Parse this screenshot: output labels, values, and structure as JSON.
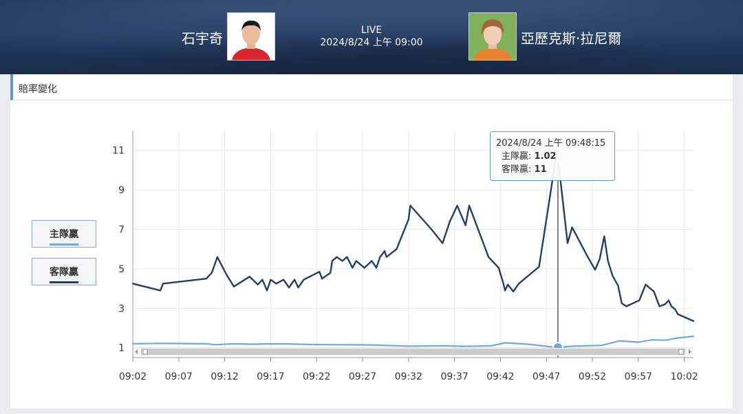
{
  "header": {
    "home_player": "石宇奇",
    "away_player": "亞歷克斯·拉尼爾",
    "status": "LIVE",
    "datetime": "2024/8/24 上午 09:00"
  },
  "panel": {
    "title": "賠率變化"
  },
  "legend": [
    {
      "label": "主隊贏",
      "color": "#6fa8dc"
    },
    {
      "label": "客隊贏",
      "color": "#1f4066"
    }
  ],
  "tooltip": {
    "time": "2024/8/24 上午 09:48:15",
    "home_label": "主隊贏",
    "home_value": "1.02",
    "away_label": "客隊贏",
    "away_value": "11"
  },
  "chart_data": {
    "type": "line",
    "x_unit": "time",
    "xlim": [
      "09:02",
      "10:03"
    ],
    "ylim": [
      0.5,
      12
    ],
    "x_ticks": [
      "09:02",
      "09:07",
      "09:12",
      "09:17",
      "09:22",
      "09:27",
      "09:32",
      "09:37",
      "09:42",
      "09:47",
      "09:52",
      "09:57",
      "10:02"
    ],
    "y_ticks": [
      1,
      3,
      5,
      7,
      9,
      11
    ],
    "grid": true,
    "legend_position": "left",
    "series": [
      {
        "name": "客隊贏",
        "color": "#1f4066",
        "points": [
          [
            "09:02",
            4.25
          ],
          [
            "09:05",
            3.9
          ],
          [
            "09:05.3",
            4.25
          ],
          [
            "09:10",
            4.5
          ],
          [
            "09:10.6",
            4.8
          ],
          [
            "09:11.2",
            5.6
          ],
          [
            "09:12.2",
            4.7
          ],
          [
            "09:13",
            4.1
          ],
          [
            "09:14.7",
            4.6
          ],
          [
            "09:15.6",
            4.2
          ],
          [
            "09:16.1",
            4.45
          ],
          [
            "09:16.6",
            3.9
          ],
          [
            "09:17",
            4.45
          ],
          [
            "09:17.6",
            4.25
          ],
          [
            "09:18.4",
            4.45
          ],
          [
            "09:19",
            4.05
          ],
          [
            "09:19.6",
            4.45
          ],
          [
            "09:20",
            4.05
          ],
          [
            "09:20.6",
            4.45
          ],
          [
            "09:22.3",
            4.85
          ],
          [
            "09:22.6",
            4.5
          ],
          [
            "09:23.5",
            4.8
          ],
          [
            "09:23.7",
            5.4
          ],
          [
            "09:24.2",
            5.6
          ],
          [
            "09:24.8",
            5.4
          ],
          [
            "09:25.3",
            5.6
          ],
          [
            "09:25.9",
            5.05
          ],
          [
            "09:26.3",
            5.4
          ],
          [
            "09:27.2",
            5.05
          ],
          [
            "09:28",
            5.4
          ],
          [
            "09:28.5",
            5.05
          ],
          [
            "09:28.9",
            5.6
          ],
          [
            "09:29.4",
            5.9
          ],
          [
            "09:29.6",
            5.6
          ],
          [
            "09:30.7",
            6.0
          ],
          [
            "09:32",
            7.5
          ],
          [
            "09:32.2",
            8.2
          ],
          [
            "09:34.5",
            7.0
          ],
          [
            "09:35.7",
            6.3
          ],
          [
            "09:36.5",
            7.4
          ],
          [
            "09:37.3",
            8.2
          ],
          [
            "09:38.2",
            7.2
          ],
          [
            "09:38.6",
            8.2
          ],
          [
            "09:40.7",
            5.6
          ],
          [
            "09:41.8",
            5.05
          ],
          [
            "09:42.3",
            4.3
          ],
          [
            "09:42.5",
            3.9
          ],
          [
            "09:42.8",
            4.2
          ],
          [
            "09:43.4",
            3.85
          ],
          [
            "09:44",
            4.25
          ],
          [
            "09:46.2",
            5.1
          ],
          [
            "09:46.9",
            7.2
          ],
          [
            "09:47.6",
            9.3
          ],
          [
            "09:48.1",
            11.0
          ],
          [
            "09:48.5",
            9.6
          ],
          [
            "09:49.3",
            6.3
          ],
          [
            "09:49.8",
            7.1
          ],
          [
            "09:51.5",
            5.6
          ],
          [
            "09:52.3",
            4.95
          ],
          [
            "09:52.8",
            5.5
          ],
          [
            "09:53.3",
            6.65
          ],
          [
            "09:53.7",
            5.4
          ],
          [
            "09:54.2",
            4.65
          ],
          [
            "09:54.8",
            4.15
          ],
          [
            "09:55.2",
            3.25
          ],
          [
            "09:55.7",
            3.1
          ],
          [
            "09:57.1",
            3.4
          ],
          [
            "09:57.8",
            4.2
          ],
          [
            "09:58.7",
            3.85
          ],
          [
            "09:59.3",
            3.1
          ],
          [
            "09:59.9",
            3.2
          ],
          [
            "10:00.3",
            3.4
          ],
          [
            "10:00.6",
            3.1
          ],
          [
            "10:01",
            2.95
          ],
          [
            "10:01.3",
            2.7
          ],
          [
            "10:03",
            2.35
          ]
        ]
      },
      {
        "name": "主隊贏",
        "color": "#6fa8dc",
        "points": [
          [
            "09:02",
            1.2
          ],
          [
            "09:05",
            1.22
          ],
          [
            "09:10",
            1.2
          ],
          [
            "09:11",
            1.15
          ],
          [
            "09:13",
            1.2
          ],
          [
            "09:15",
            1.18
          ],
          [
            "09:18",
            1.2
          ],
          [
            "09:22",
            1.16
          ],
          [
            "09:25",
            1.15
          ],
          [
            "09:28",
            1.14
          ],
          [
            "09:32",
            1.08
          ],
          [
            "09:36",
            1.1
          ],
          [
            "09:38",
            1.07
          ],
          [
            "09:41",
            1.1
          ],
          [
            "09:42.5",
            1.25
          ],
          [
            "09:45",
            1.18
          ],
          [
            "09:48",
            1.02
          ],
          [
            "09:50",
            1.08
          ],
          [
            "09:53",
            1.12
          ],
          [
            "09:55",
            1.35
          ],
          [
            "09:57",
            1.28
          ],
          [
            "09:58.5",
            1.4
          ],
          [
            "10:00",
            1.38
          ],
          [
            "10:01",
            1.48
          ],
          [
            "10:03",
            1.58
          ]
        ]
      }
    ],
    "highlight": {
      "x": "09:48.25",
      "series_values": [
        1.02,
        11
      ]
    }
  }
}
